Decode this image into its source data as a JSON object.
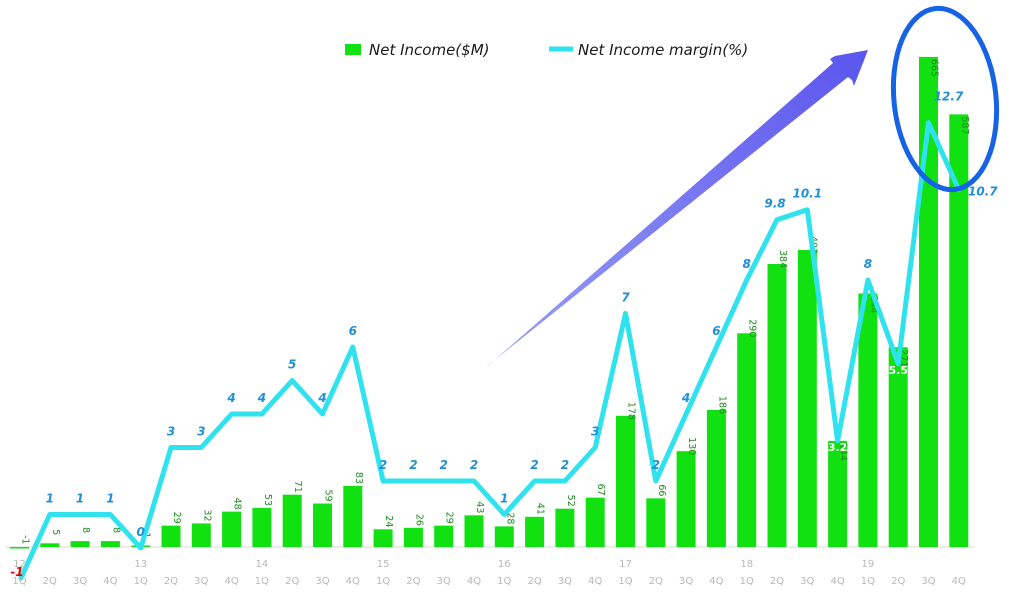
{
  "chart_data": {
    "type": "bar",
    "categories": [
      "1Q",
      "2Q",
      "3Q",
      "4Q",
      "1Q",
      "2Q",
      "3Q",
      "4Q",
      "1Q",
      "2Q",
      "3Q",
      "4Q",
      "1Q",
      "2Q",
      "3Q",
      "4Q",
      "1Q",
      "2Q",
      "3Q",
      "4Q",
      "1Q",
      "2Q",
      "3Q",
      "4Q",
      "1Q",
      "2Q",
      "3Q",
      "4Q",
      "1Q",
      "2Q",
      "3Q",
      "4Q"
    ],
    "years": [
      {
        "label": "12",
        "start_index": 0
      },
      {
        "label": "13",
        "start_index": 4
      },
      {
        "label": "14",
        "start_index": 8
      },
      {
        "label": "15",
        "start_index": 12
      },
      {
        "label": "16",
        "start_index": 16
      },
      {
        "label": "17",
        "start_index": 20
      },
      {
        "label": "18",
        "start_index": 24
      },
      {
        "label": "19",
        "start_index": 28
      }
    ],
    "series": [
      {
        "name": "Net Income($M)",
        "type": "bar",
        "color": "#11e011",
        "values": [
          -1,
          5,
          8,
          8,
          1,
          29,
          32,
          48,
          53,
          71,
          59,
          83,
          24,
          26,
          29,
          43,
          28,
          41,
          52,
          67,
          178,
          66,
          130,
          186,
          290,
          384,
          403,
          144,
          344,
          271,
          665,
          587
        ],
        "labels": [
          "-1",
          "5",
          "8",
          "8",
          "1",
          "29",
          "32",
          "48",
          "53",
          "71",
          "59",
          "83",
          "24",
          "26",
          "29",
          "43",
          "28",
          "41",
          "52",
          "67",
          "178",
          "66",
          "130",
          "186",
          "290",
          "384",
          "403",
          "144",
          "344",
          "271",
          "665",
          "587"
        ]
      },
      {
        "name": "Net Income margin(%)",
        "type": "line",
        "color": "#2fe2ee",
        "values": [
          -1,
          1,
          1,
          1,
          0,
          3,
          3,
          4,
          4,
          5,
          4,
          6,
          2,
          2,
          2,
          2,
          1,
          2,
          2,
          3,
          7,
          2,
          4,
          6,
          8,
          9.8,
          10.1,
          3.2,
          8,
          5.5,
          12.7,
          10.7
        ],
        "labels": [
          "-1",
          "1",
          "1",
          "1",
          "0",
          "3",
          "3",
          "4",
          "4",
          "5",
          "4",
          "6",
          "2",
          "2",
          "2",
          "2",
          "1",
          "2",
          "2",
          "3",
          "7",
          "2",
          "4",
          "6",
          "8",
          "9.8",
          "10.1",
          "3.2",
          "8",
          "5.5",
          "12.7",
          "10.7"
        ]
      }
    ],
    "legend_position": "top",
    "grid": false,
    "annotations": [
      "arrow pointing up-right toward the last two quarters",
      "blue ellipse around the last two quarters"
    ],
    "colors": {
      "bar": "#11e011",
      "line": "#2fe2ee",
      "arrow": "#6e6af0",
      "ellipse": "#1763e6",
      "bar_label": "#1e8c1e",
      "line_label": "#1f8fd8",
      "negative_label": "#e00000"
    }
  }
}
